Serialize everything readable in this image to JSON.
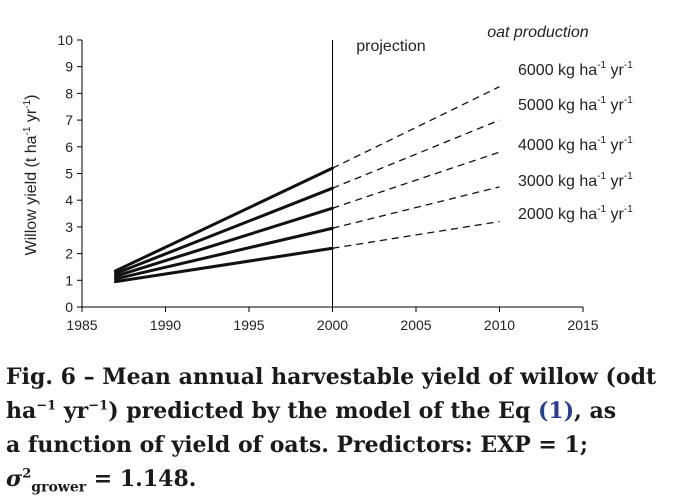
{
  "chart_data": {
    "type": "line",
    "title": "",
    "xlabel": "",
    "ylabel": {
      "main": "Willow yield (t ha",
      "sup1": "-1",
      "mid": " yr",
      "sup2": "-1",
      "end": ")"
    },
    "xlim": [
      1985,
      2015
    ],
    "ylim": [
      0,
      10
    ],
    "xticks": [
      1985,
      1990,
      1995,
      2000,
      2005,
      2010,
      2015
    ],
    "yticks": [
      0,
      1,
      2,
      3,
      4,
      5,
      6,
      7,
      8,
      9,
      10
    ],
    "grid": false,
    "divider": {
      "x": 2000,
      "label": "projection"
    },
    "legend_title": "oat production",
    "observed_range": [
      1987,
      2000
    ],
    "projection_range": [
      2000,
      2010
    ],
    "series": [
      {
        "name": "6000 kg ha-1 yr-1",
        "label_main": "6000 kg ha",
        "x": [
          1987,
          2000,
          2010
        ],
        "values": [
          1.35,
          5.2,
          8.25
        ]
      },
      {
        "name": "5000 kg ha-1 yr-1",
        "label_main": "5000 kg ha",
        "x": [
          1987,
          2000,
          2010
        ],
        "values": [
          1.25,
          4.45,
          7.0
        ]
      },
      {
        "name": "4000 kg ha-1 yr-1",
        "label_main": "4000 kg ha",
        "x": [
          1987,
          2000,
          2010
        ],
        "values": [
          1.15,
          3.7,
          5.8
        ]
      },
      {
        "name": "3000 kg ha-1 yr-1",
        "label_main": "3000 kg ha",
        "x": [
          1987,
          2000,
          2010
        ],
        "values": [
          1.05,
          2.95,
          4.5
        ]
      },
      {
        "name": "2000 kg ha-1 yr-1",
        "label_main": "2000 kg ha",
        "x": [
          1987,
          2000,
          2010
        ],
        "values": [
          0.95,
          2.2,
          3.2
        ]
      }
    ],
    "series_label_sup1": "-1",
    "series_label_mid": " yr",
    "series_label_sup2": "-1"
  },
  "caption": {
    "line1": "Fig. 6 – Mean annual harvestable yield of willow (odt",
    "ha": "ha",
    "sup_neg1": "−1",
    "yr": " yr",
    "sup_neg1b": "−1",
    "line2_rest": ") predicted by the model of the Eq ",
    "eq_ref": "(1)",
    "line2_end": ", as",
    "line3": "a function of yield of oats. Predictors: EXP = 1;",
    "sigma": "σ",
    "sigma_sup": "2",
    "sigma_sub": "grower",
    "line4_end": " = 1.148."
  }
}
